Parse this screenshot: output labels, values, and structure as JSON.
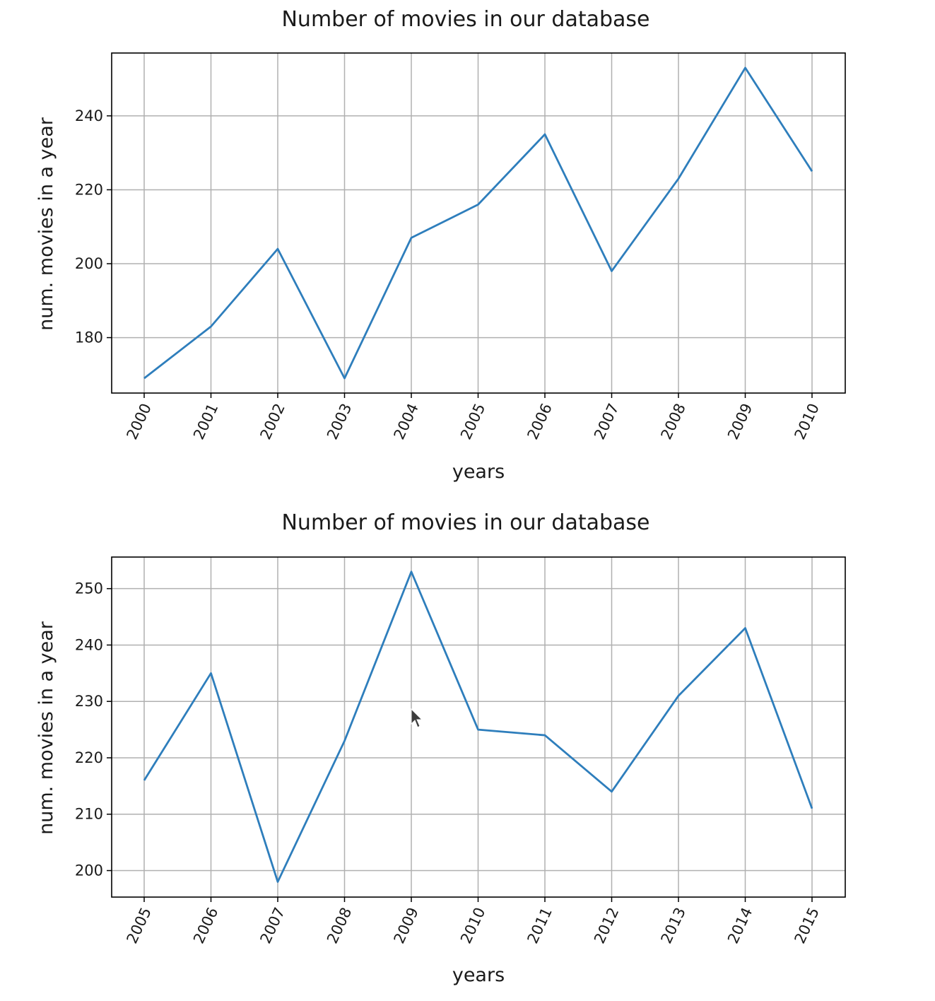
{
  "chart_data": [
    {
      "type": "line",
      "title": "Number of movies in our database",
      "xlabel": "years",
      "ylabel": "num. movies in a year",
      "x": [
        "2000",
        "2001",
        "2002",
        "2003",
        "2004",
        "2005",
        "2006",
        "2007",
        "2008",
        "2009",
        "2010"
      ],
      "series": [
        {
          "values": [
            169,
            183,
            204,
            169,
            207,
            216,
            235,
            198,
            223,
            253,
            225
          ]
        }
      ],
      "yticks": [
        180,
        200,
        220,
        240
      ],
      "ylim": [
        165,
        257
      ],
      "xtick_rotation_deg": -65,
      "grid": true,
      "legend": "none",
      "line_color": "#2e7ebc"
    },
    {
      "type": "line",
      "title": "Number of movies in our database",
      "xlabel": "years",
      "ylabel": "num. movies in a year",
      "x": [
        "2005",
        "2006",
        "2007",
        "2008",
        "2009",
        "2010",
        "2011",
        "2012",
        "2013",
        "2014",
        "2015"
      ],
      "series": [
        {
          "values": [
            216,
            235,
            198,
            223,
            253,
            225,
            224,
            214,
            231,
            243,
            211
          ]
        }
      ],
      "yticks": [
        200,
        210,
        220,
        230,
        240,
        250
      ],
      "ylim": [
        195.3,
        255.6
      ],
      "xtick_rotation_deg": -65,
      "grid": true,
      "legend": "none",
      "line_color": "#2e7ebc"
    }
  ]
}
